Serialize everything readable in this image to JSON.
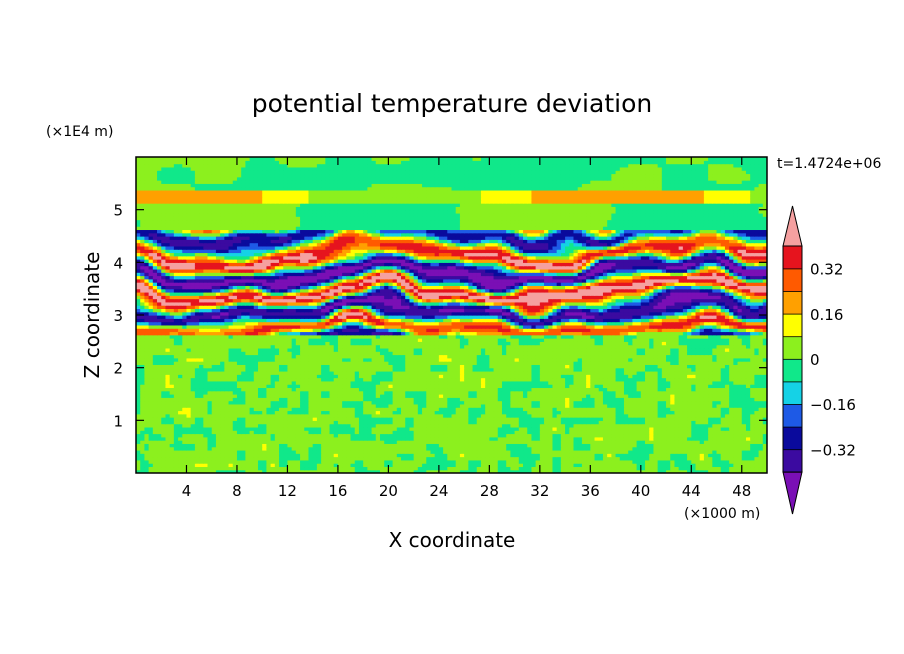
{
  "chart_data": {
    "type": "heatmap",
    "title": "potential temperature deviation",
    "xlabel": "X coordinate",
    "ylabel": "Z coordinate",
    "x_unit": "(×1000 m)",
    "y_unit": "(×1E4 m)",
    "time_label": "t=1.4724e+06",
    "xlim": [
      0,
      50
    ],
    "ylim": [
      0,
      6
    ],
    "x_ticks": [
      "4",
      "8",
      "12",
      "16",
      "20",
      "24",
      "28",
      "32",
      "36",
      "40",
      "44",
      "48"
    ],
    "x_tick_values": [
      4,
      8,
      12,
      16,
      20,
      24,
      28,
      32,
      36,
      40,
      44,
      48
    ],
    "y_ticks": [
      "1",
      "2",
      "3",
      "4",
      "5"
    ],
    "y_tick_values": [
      1,
      2,
      3,
      4,
      5
    ],
    "colorbar": {
      "levels": [
        -0.4,
        -0.32,
        -0.24,
        -0.16,
        -0.08,
        0,
        0.08,
        0.16,
        0.24,
        0.32,
        0.4
      ],
      "labels": [
        "0.32",
        "0.16",
        "0",
        "−0.16",
        "−0.32"
      ],
      "label_values": [
        0.32,
        0.16,
        0,
        -0.16,
        -0.32
      ],
      "colors": [
        "#7a0fb5",
        "#3b0aa0",
        "#0a0a9c",
        "#1e5ae6",
        "#15d2e6",
        "#10e88a",
        "#8cf01e",
        "#ffff00",
        "#ffa000",
        "#ff5a00",
        "#e6141e",
        "#f5a0a0"
      ]
    }
  }
}
